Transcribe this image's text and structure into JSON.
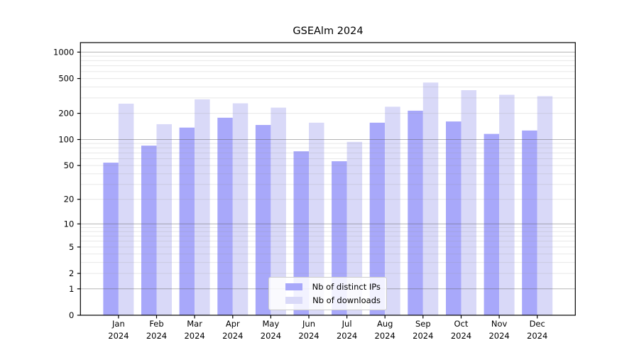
{
  "title": "GSEAlm 2024",
  "chart_data": {
    "type": "bar",
    "title": "GSEAlm 2024",
    "categories": [
      "Jan 2024",
      "Feb 2024",
      "Mar 2024",
      "Apr 2024",
      "May 2024",
      "Jun 2024",
      "Jul 2024",
      "Aug 2024",
      "Sep 2024",
      "Oct 2024",
      "Nov 2024",
      "Dec 2024"
    ],
    "series": [
      {
        "name": "Nb of distinct IPs",
        "color": "#a8a8fa",
        "values": [
          54,
          85,
          137,
          178,
          147,
          73,
          56,
          156,
          214,
          161,
          116,
          127
        ]
      },
      {
        "name": "Nb of downloads",
        "color": "#d9d9f8",
        "values": [
          258,
          150,
          289,
          260,
          232,
          156,
          94,
          238,
          449,
          368,
          326,
          314
        ]
      }
    ],
    "xlabel": "",
    "ylabel": "",
    "yscale": "log1p",
    "yticks": [
      0,
      1,
      2,
      5,
      10,
      20,
      50,
      100,
      200,
      500,
      1000
    ],
    "ylim": [
      0,
      1300
    ],
    "grid": "on",
    "legend_position": "lower center"
  },
  "style": {
    "axis_color": "#000000",
    "grid_major_color": "rgba(90,90,90,0.45)",
    "grid_minor_color": "rgba(150,150,150,0.22)",
    "legend_border_color": "#cccccc"
  }
}
